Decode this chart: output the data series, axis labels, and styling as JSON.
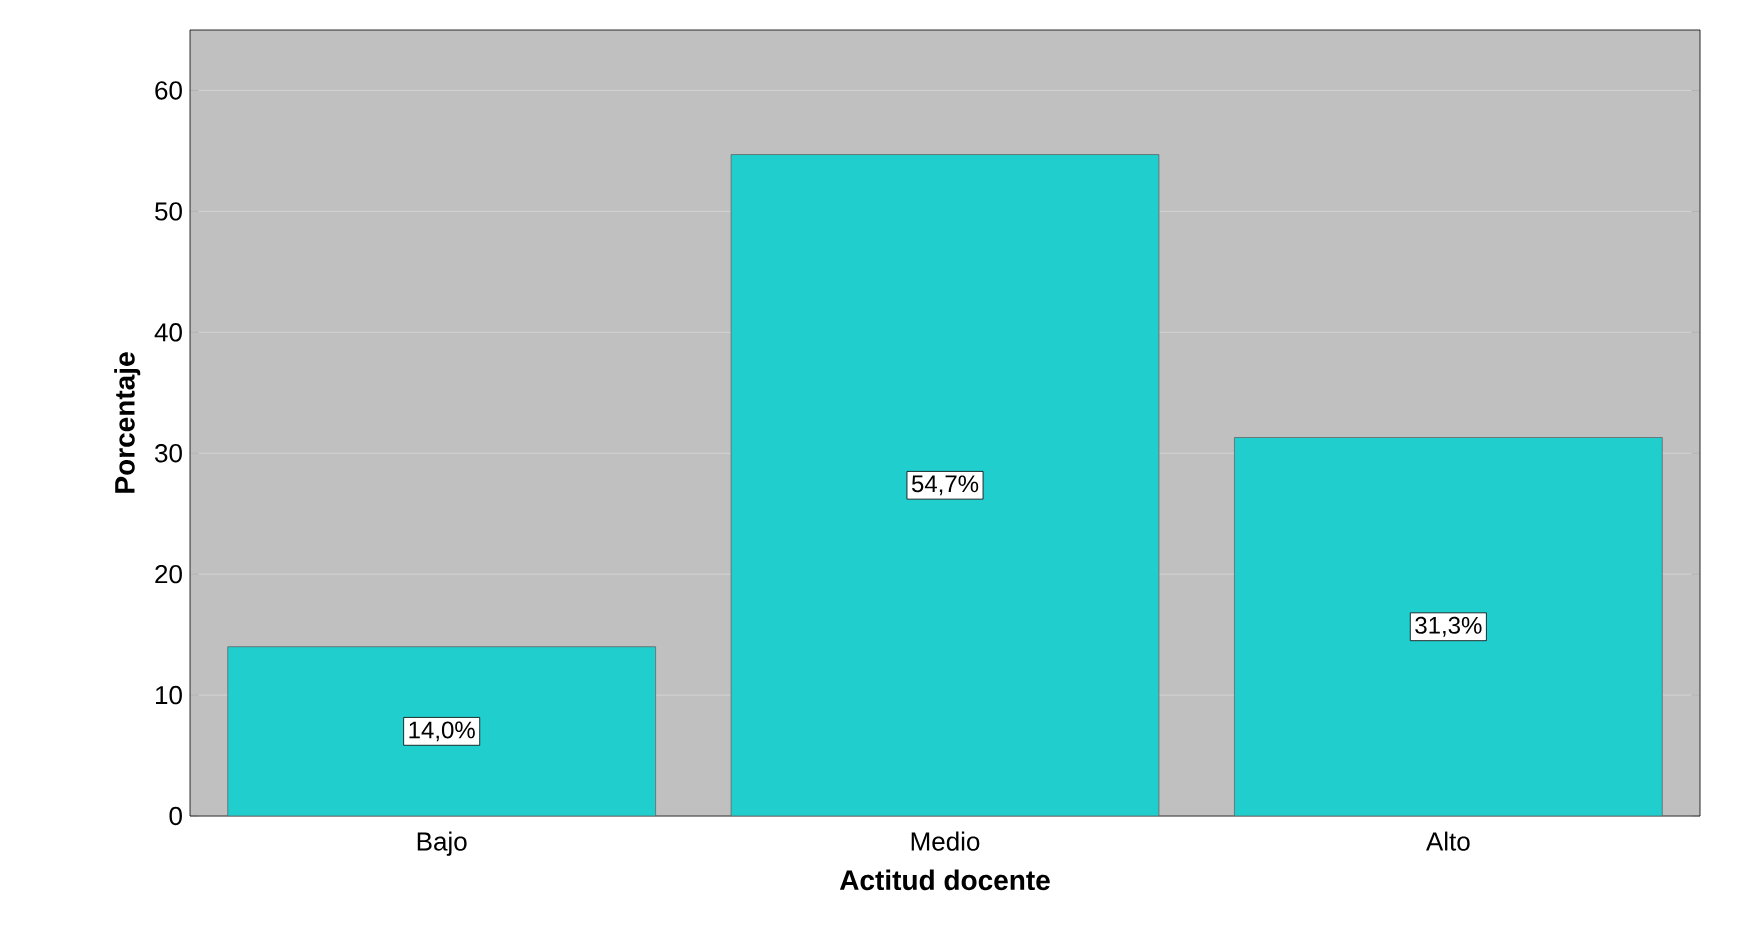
{
  "chart_data": {
    "type": "bar",
    "xlabel": "Actitud docente",
    "ylabel": "Porcentaje",
    "categories": [
      "Bajo",
      "Medio",
      "Alto"
    ],
    "values": [
      14.0,
      54.7,
      31.3
    ],
    "value_labels": [
      "14,0%",
      "54,7%",
      "31,3%"
    ],
    "color": "#1fcecd",
    "ylim": [
      0,
      65
    ],
    "yticks": [
      0,
      10,
      20,
      30,
      40,
      50,
      60
    ],
    "grid": "y"
  }
}
